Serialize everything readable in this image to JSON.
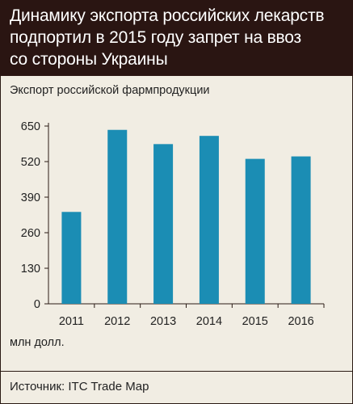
{
  "header": {
    "title_lines": [
      "Динамику экспорта российских лекарств",
      "подпортил в 2015 году запрет на ввоз",
      "со стороны Украины"
    ]
  },
  "chart_data": {
    "type": "bar",
    "title": "Экспорт российской фармпродукции",
    "categories": [
      "2011",
      "2012",
      "2013",
      "2014",
      "2015",
      "2016"
    ],
    "values": [
      336,
      636,
      584,
      614,
      530,
      539
    ],
    "unit_label": "млн долл.",
    "ylim": [
      0,
      650
    ],
    "yticks": [
      0,
      130,
      260,
      390,
      520,
      650
    ],
    "grid": false,
    "bar_color": "#1b8db4"
  },
  "footer": {
    "source": "Источник: ITC Trade Map"
  },
  "colors": {
    "header_bg": "#2a1512",
    "page_bg": "#f1ede3",
    "bar": "#1b8db4"
  }
}
